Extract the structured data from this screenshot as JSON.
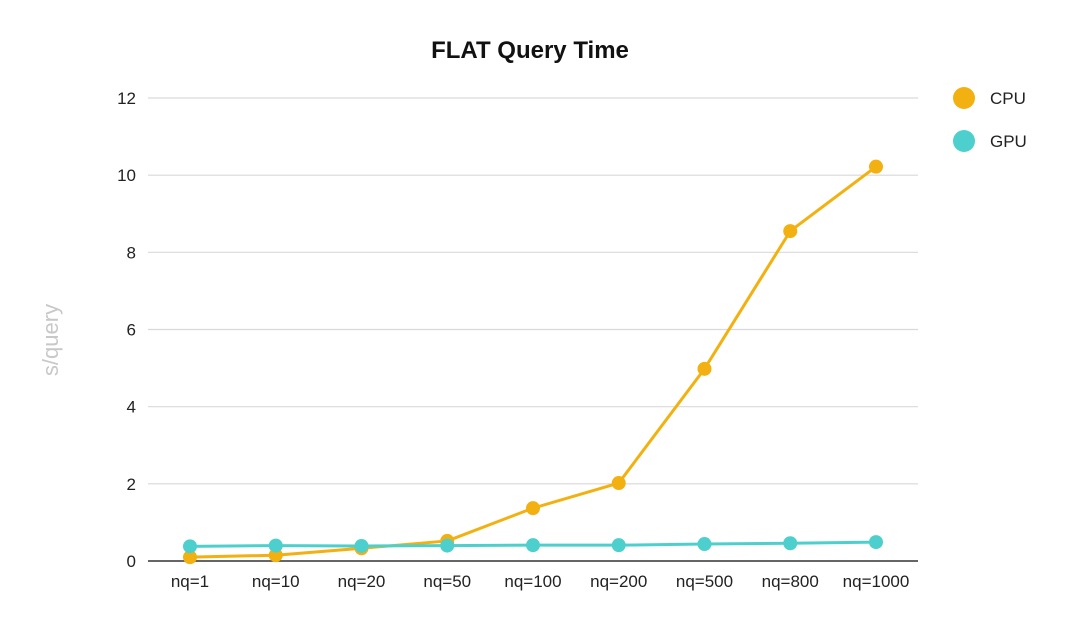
{
  "chart_data": {
    "type": "line",
    "title": "FLAT Query Time",
    "xlabel": "",
    "ylabel": "s/query",
    "categories": [
      "nq=1",
      "nq=10",
      "nq=20",
      "nq=50",
      "nq=100",
      "nq=200",
      "nq=500",
      "nq=800",
      "nq=1000"
    ],
    "ylim": [
      0,
      12
    ],
    "yticks": [
      0,
      2,
      4,
      6,
      8,
      10,
      12
    ],
    "grid": true,
    "legend_position": "top-right",
    "series": [
      {
        "name": "CPU",
        "color": "#F2B110",
        "values": [
          0.1,
          0.15,
          0.33,
          0.52,
          1.37,
          2.02,
          4.98,
          8.55,
          10.22
        ]
      },
      {
        "name": "GPU",
        "color": "#4DD0CD",
        "values": [
          0.38,
          0.4,
          0.39,
          0.4,
          0.41,
          0.41,
          0.44,
          0.46,
          0.49
        ]
      }
    ]
  }
}
